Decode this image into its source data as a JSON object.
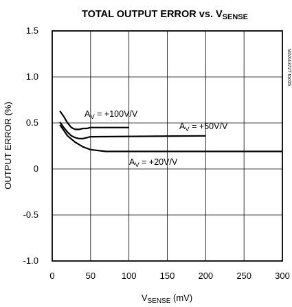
{
  "chart_data": {
    "type": "line",
    "title": "TOTAL OUTPUT ERROR vs. V",
    "title_sub": "SENSE",
    "xlabel": "V",
    "xlabel_sub": "SENSE",
    "xlabel_unit": " (mV)",
    "ylabel": "OUTPUT ERROR (%)",
    "xlim": [
      0,
      300
    ],
    "ylim": [
      -1.0,
      1.5
    ],
    "x_ticks": [
      "0",
      "50",
      "100",
      "150",
      "200",
      "250",
      "300"
    ],
    "y_ticks": [
      "1.5",
      "1.0",
      "0.5",
      "0",
      "-0.5",
      "-1.0"
    ],
    "grid": true,
    "watermark": "MAX4372T toc05",
    "series": [
      {
        "name": "AV = +100V/V",
        "label_main": "A",
        "label_sub": "V",
        "label_rest": " = +100V/V",
        "x": [
          10,
          15,
          20,
          25,
          30,
          35,
          40,
          45,
          50,
          100
        ],
        "y": [
          0.63,
          0.57,
          0.5,
          0.45,
          0.43,
          0.43,
          0.44,
          0.44,
          0.45,
          0.45
        ]
      },
      {
        "name": "AV = +50V/V",
        "label_main": "A",
        "label_sub": "V",
        "label_rest": " = +50V/V",
        "x": [
          10,
          15,
          20,
          25,
          30,
          35,
          40,
          45,
          50,
          200
        ],
        "y": [
          0.51,
          0.45,
          0.4,
          0.36,
          0.34,
          0.33,
          0.33,
          0.34,
          0.35,
          0.36
        ]
      },
      {
        "name": "AV = +20V/V",
        "label_main": "A",
        "label_sub": "V",
        "label_rest": " = +20V/V",
        "x": [
          10,
          15,
          20,
          30,
          40,
          50,
          60,
          70,
          300
        ],
        "y": [
          0.48,
          0.42,
          0.36,
          0.29,
          0.24,
          0.21,
          0.2,
          0.19,
          0.19
        ]
      }
    ]
  }
}
